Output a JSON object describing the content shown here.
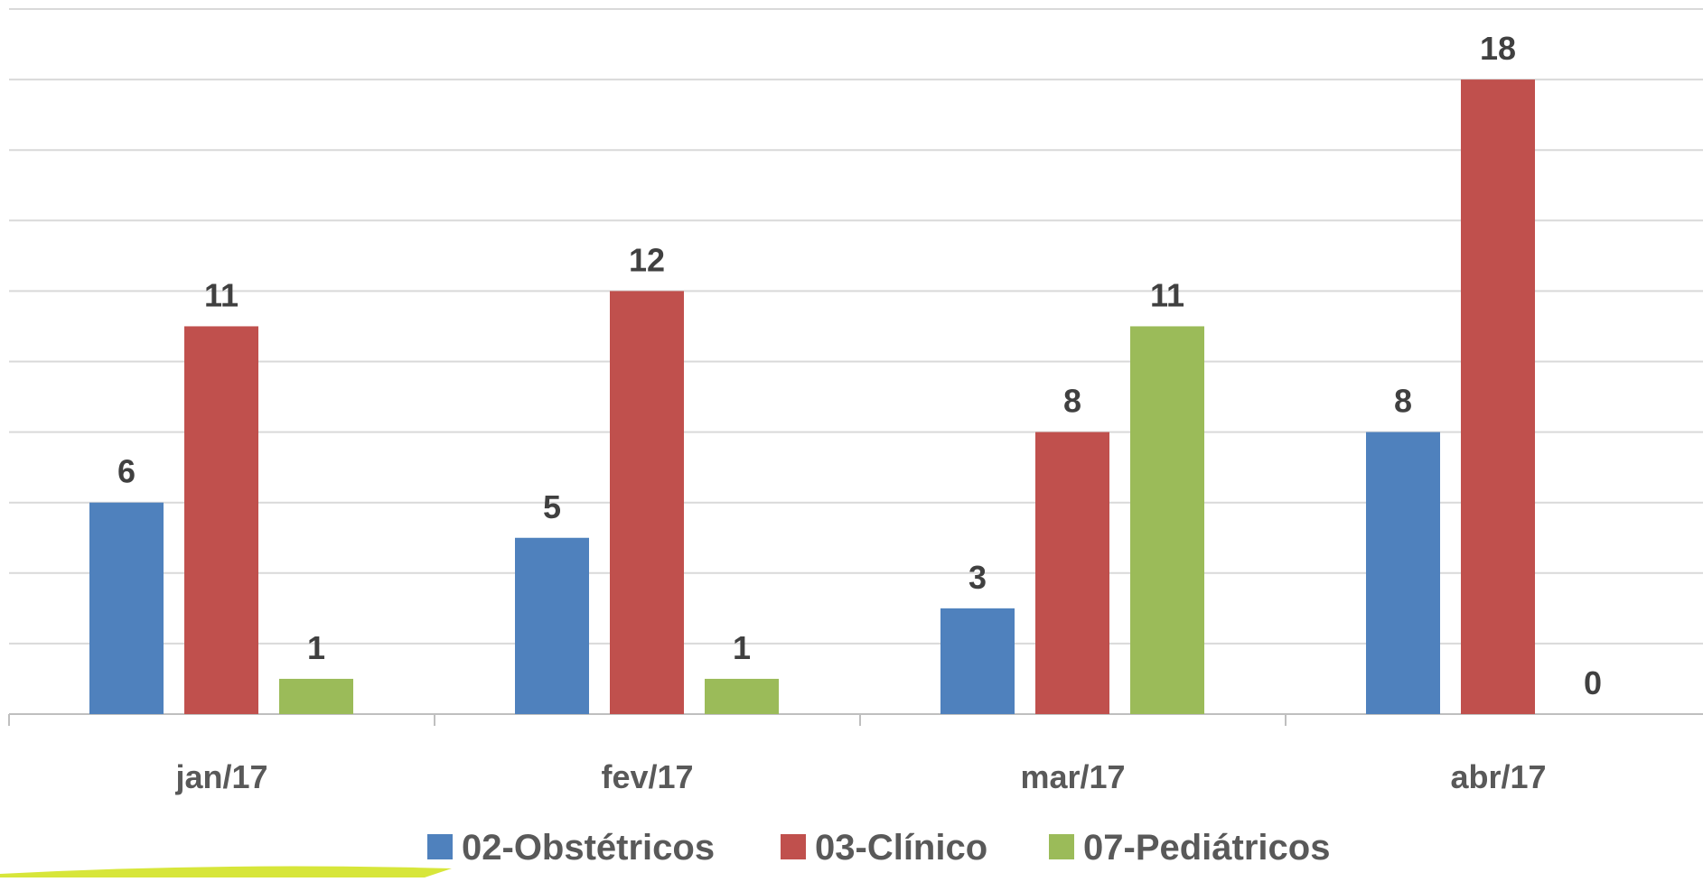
{
  "chart_data": {
    "type": "bar",
    "title": "",
    "xlabel": "",
    "ylabel": "",
    "categories": [
      "jan/17",
      "fev/17",
      "mar/17",
      "abr/17"
    ],
    "series": [
      {
        "name": "02-Obstétricos",
        "values": [
          6,
          5,
          3,
          8
        ],
        "color": "#4F81BD"
      },
      {
        "name": "03-Clínico",
        "values": [
          11,
          12,
          8,
          18
        ],
        "color": "#C0504D"
      },
      {
        "name": "07-Pediátricos",
        "values": [
          1,
          1,
          11,
          0
        ],
        "color": "#9BBB59"
      }
    ],
    "ylim": [
      0,
      20
    ],
    "ytick_step": 2,
    "y_tick_labels_shown": false,
    "grid": true,
    "legend": "bottom",
    "data_labels": true
  },
  "colors": {
    "grid": "#D9D9D9",
    "axis": "#BFBFBF",
    "decoration": "#D7E63A"
  }
}
